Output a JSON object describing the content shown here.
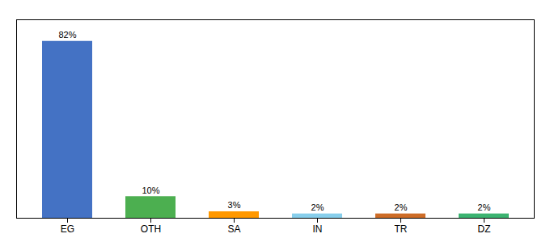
{
  "chart_data": {
    "type": "bar",
    "categories": [
      "EG",
      "OTH",
      "SA",
      "IN",
      "TR",
      "DZ"
    ],
    "values": [
      82,
      10,
      3,
      2,
      2,
      2
    ],
    "value_labels": [
      "82%",
      "10%",
      "3%",
      "2%",
      "2%",
      "2%"
    ],
    "colors": [
      "#4472C4",
      "#4CAF50",
      "#FF9800",
      "#87CEEB",
      "#CD6C27",
      "#3CB371"
    ],
    "ylim": [
      0,
      92
    ],
    "data_labels": true,
    "tick_labels": "x"
  }
}
